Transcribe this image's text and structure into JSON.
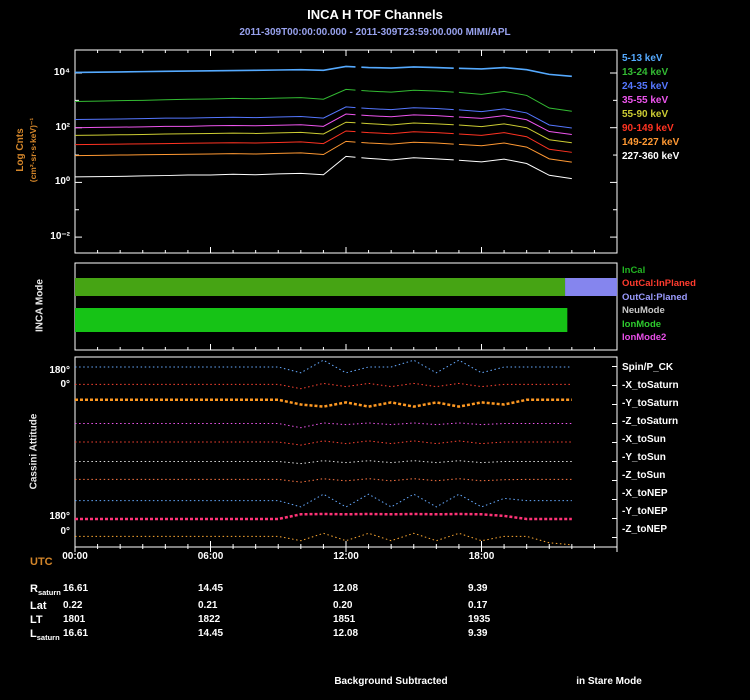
{
  "title": "INCA H TOF Channels",
  "subtitle": "2011-309T00:00:00.000 - 2011-309T23:59:00.000 MIMI/APL",
  "footer": {
    "background_note": "Background Subtracted",
    "mode_note": "in Stare Mode"
  },
  "colors": {
    "background": "#000000",
    "frame": "#ffffff",
    "axis_label": "#d4862a",
    "subtitle": "#98a2ee",
    "tick_text": "#ffffff"
  },
  "xaxis": {
    "label": "UTC",
    "range_hours": [
      0,
      24
    ],
    "ticks": [
      {
        "hour": 0,
        "label": "00:00"
      },
      {
        "hour": 6,
        "label": "06:00"
      },
      {
        "hour": 12,
        "label": "12:00"
      },
      {
        "hour": 18,
        "label": "18:00"
      }
    ]
  },
  "chart_data": [
    {
      "id": "tof_channels",
      "type": "line",
      "ylabel": "Log Cnts",
      "ylabel_units": "(cm²·sr·s·keV)⁻¹",
      "yscale": "log10",
      "ylim_log": [
        -2.6,
        4.85
      ],
      "yticks": [
        {
          "label": "10⁴",
          "log": 4
        },
        {
          "label": "10²",
          "log": 2
        },
        {
          "label": "10⁰",
          "log": 0
        },
        {
          "label": "10⁻²",
          "log": -2
        }
      ],
      "x_hours": [
        0,
        1,
        2,
        3,
        4,
        5,
        6,
        7,
        8,
        9,
        10,
        11,
        12,
        13,
        14,
        15,
        16,
        17,
        18,
        19,
        20,
        21,
        22
      ],
      "gap_hours": [
        12.55,
        16.9
      ],
      "series": [
        {
          "name": "227-360 keV",
          "color": "#ffffff",
          "width": 1,
          "log_counts": [
            0.2,
            0.21,
            0.22,
            0.24,
            0.25,
            0.27,
            0.27,
            0.3,
            0.28,
            0.31,
            0.33,
            0.28,
            0.95,
            0.88,
            0.82,
            0.9,
            0.86,
            0.81,
            0.75,
            0.85,
            0.69,
            0.26,
            0.14
          ]
        },
        {
          "name": "149-227 keV",
          "color": "#ff9933",
          "width": 1,
          "log_counts": [
            0.98,
            0.99,
            1.0,
            1.01,
            1.02,
            1.03,
            1.04,
            1.05,
            1.04,
            1.06,
            1.08,
            1.02,
            1.5,
            1.44,
            1.4,
            1.47,
            1.44,
            1.39,
            1.34,
            1.44,
            1.29,
            0.86,
            0.74
          ]
        },
        {
          "name": "90-149 keV",
          "color": "#ff3322",
          "width": 1,
          "log_counts": [
            1.38,
            1.39,
            1.4,
            1.41,
            1.42,
            1.43,
            1.44,
            1.45,
            1.44,
            1.46,
            1.48,
            1.42,
            1.88,
            1.82,
            1.78,
            1.85,
            1.82,
            1.77,
            1.72,
            1.82,
            1.67,
            1.21,
            1.1
          ]
        },
        {
          "name": "55-90 keV",
          "color": "#cccc33",
          "width": 1,
          "log_counts": [
            1.72,
            1.73,
            1.74,
            1.75,
            1.77,
            1.78,
            1.79,
            1.8,
            1.79,
            1.81,
            1.83,
            1.77,
            2.2,
            2.15,
            2.1,
            2.17,
            2.14,
            2.1,
            2.04,
            2.14,
            2.0,
            1.56,
            1.45
          ]
        },
        {
          "name": "35-55 keV",
          "color": "#ee55ee",
          "width": 1,
          "log_counts": [
            2.0,
            2.01,
            2.02,
            2.03,
            2.05,
            2.05,
            2.07,
            2.08,
            2.07,
            2.09,
            2.11,
            2.05,
            2.5,
            2.44,
            2.4,
            2.47,
            2.44,
            2.39,
            2.34,
            2.44,
            2.29,
            1.86,
            1.75
          ]
        },
        {
          "name": "24-35 keV",
          "color": "#5577ff",
          "width": 1,
          "log_counts": [
            2.3,
            2.31,
            2.32,
            2.33,
            2.35,
            2.35,
            2.37,
            2.38,
            2.37,
            2.39,
            2.41,
            2.35,
            2.76,
            2.7,
            2.66,
            2.73,
            2.7,
            2.65,
            2.59,
            2.69,
            2.54,
            2.1,
            1.99
          ]
        },
        {
          "name": "13-24 keV",
          "color": "#33bb33",
          "width": 1,
          "log_counts": [
            2.96,
            2.97,
            2.99,
            3.0,
            3.02,
            3.04,
            3.05,
            3.07,
            3.06,
            3.08,
            3.1,
            3.04,
            3.4,
            3.34,
            3.3,
            3.37,
            3.34,
            3.29,
            3.22,
            3.33,
            3.18,
            2.72,
            2.6
          ]
        },
        {
          "name": "5-13 keV",
          "color": "#55aaff",
          "width": 1.6,
          "log_counts": [
            4.02,
            4.03,
            4.04,
            4.05,
            4.06,
            4.07,
            4.08,
            4.09,
            4.1,
            4.11,
            4.12,
            4.1,
            4.24,
            4.2,
            4.18,
            4.22,
            4.2,
            4.17,
            4.15,
            4.2,
            4.12,
            3.95,
            3.88
          ]
        }
      ]
    },
    {
      "id": "inca_mode",
      "type": "mode-bars",
      "ylabel": "INCA Mode",
      "bars": [
        {
          "name": "mode-bar-upper",
          "segments": [
            {
              "start_hour": 0,
              "end_hour": 21.7,
              "color": "#46a414"
            },
            {
              "start_hour": 21.7,
              "end_hour": 24,
              "color": "#8585ee"
            }
          ]
        },
        {
          "name": "mode-bar-lower",
          "segments": [
            {
              "start_hour": 0,
              "end_hour": 21.8,
              "color": "#16c316"
            }
          ]
        }
      ],
      "legend": [
        {
          "label": "InCal",
          "color": "#21b421"
        },
        {
          "label": "OutCal:InPlaned",
          "color": "#ff3b2e"
        },
        {
          "label": "OutCal:Planed",
          "color": "#9b9bff"
        },
        {
          "label": "NeuMode",
          "color": "#c8c8c8"
        },
        {
          "label": "IonMode",
          "color": "#2ecc2e"
        },
        {
          "label": "IonMode2",
          "color": "#e84fe8"
        }
      ]
    },
    {
      "id": "cassini_attitude",
      "type": "line",
      "ylabel": "Cassini Attitude",
      "ylim_degrees": [
        0,
        360
      ],
      "ytick_labels": [
        "180°",
        "0°",
        "180°",
        "0°"
      ],
      "x_hours": [
        0,
        1,
        2,
        3,
        4,
        5,
        6,
        7,
        8,
        9,
        10,
        11,
        12,
        13,
        14,
        15,
        16,
        17,
        18,
        19,
        20,
        21,
        22
      ],
      "series": [
        {
          "name": "Spin/P_CK",
          "color": "#66aaff",
          "thick": false,
          "values": [
            170,
            170,
            170,
            170,
            170,
            170,
            170,
            170,
            170,
            170,
            60,
            300,
            60,
            170,
            170,
            300,
            60,
            300,
            60,
            170,
            170,
            170,
            170
          ]
        },
        {
          "name": "-X_toSaturn",
          "color": "#ff4433",
          "thick": false,
          "values": [
            200,
            200,
            200,
            200,
            200,
            200,
            200,
            200,
            200,
            200,
            120,
            220,
            160,
            220,
            160,
            220,
            160,
            220,
            160,
            200,
            200,
            200,
            200
          ]
        },
        {
          "name": "-Y_toSaturn",
          "color": "#ff9922",
          "thick": true,
          "values": [
            270,
            270,
            270,
            270,
            270,
            270,
            270,
            270,
            270,
            270,
            180,
            140,
            220,
            140,
            220,
            140,
            220,
            140,
            220,
            180,
            270,
            270,
            270
          ]
        },
        {
          "name": "-Z_toSaturn",
          "color": "#ee55ee",
          "thick": false,
          "values": [
            180,
            180,
            180,
            180,
            180,
            180,
            180,
            180,
            180,
            180,
            100,
            190,
            160,
            190,
            160,
            190,
            160,
            190,
            160,
            180,
            180,
            180,
            180
          ]
        },
        {
          "name": "-X_toSun",
          "color": "#ff4433",
          "thick": false,
          "values": [
            190,
            190,
            190,
            190,
            190,
            190,
            190,
            190,
            190,
            190,
            130,
            210,
            160,
            210,
            160,
            210,
            160,
            210,
            160,
            190,
            190,
            190,
            190
          ]
        },
        {
          "name": "-Y_toSun",
          "color": "#dddddd",
          "thick": false,
          "values": [
            180,
            180,
            180,
            180,
            180,
            180,
            180,
            180,
            180,
            180,
            140,
            195,
            160,
            195,
            160,
            195,
            160,
            195,
            160,
            180,
            180,
            180,
            180
          ]
        },
        {
          "name": "-Z_toSun",
          "color": "#ff7744",
          "thick": false,
          "values": [
            200,
            200,
            200,
            200,
            200,
            200,
            200,
            200,
            200,
            200,
            150,
            215,
            175,
            215,
            175,
            215,
            175,
            215,
            175,
            195,
            200,
            200,
            200
          ]
        },
        {
          "name": "-X_toNEP",
          "color": "#66aaff",
          "thick": false,
          "values": [
            160,
            160,
            160,
            160,
            160,
            160,
            160,
            160,
            160,
            160,
            40,
            280,
            40,
            280,
            40,
            280,
            40,
            280,
            40,
            200,
            160,
            160,
            160
          ]
        },
        {
          "name": "-Y_toNEP",
          "color": "#ff3377",
          "thick": true,
          "values": [
            170,
            170,
            170,
            170,
            170,
            170,
            170,
            170,
            170,
            170,
            260,
            265,
            260,
            265,
            260,
            265,
            260,
            265,
            260,
            230,
            170,
            170,
            170
          ]
        },
        {
          "name": "-Z_toNEP",
          "color": "#ffaa33",
          "thick": false,
          "values": [
            200,
            200,
            200,
            200,
            200,
            200,
            200,
            200,
            200,
            200,
            120,
            260,
            120,
            260,
            120,
            260,
            120,
            260,
            120,
            200,
            200,
            80,
            40
          ]
        }
      ]
    }
  ],
  "table": {
    "rows": [
      {
        "label": "R",
        "subscript": "saturn",
        "values": [
          "16.61",
          "14.45",
          "12.08",
          "9.39"
        ]
      },
      {
        "label": "Lat",
        "subscript": "",
        "values": [
          "0.22",
          "0.21",
          "0.20",
          "0.17"
        ]
      },
      {
        "label": "LT",
        "subscript": "",
        "values": [
          "1801",
          "1822",
          "1851",
          "1935"
        ]
      },
      {
        "label": "L",
        "subscript": "saturn",
        "values": [
          "16.61",
          "14.45",
          "12.08",
          "9.39"
        ]
      }
    ]
  }
}
